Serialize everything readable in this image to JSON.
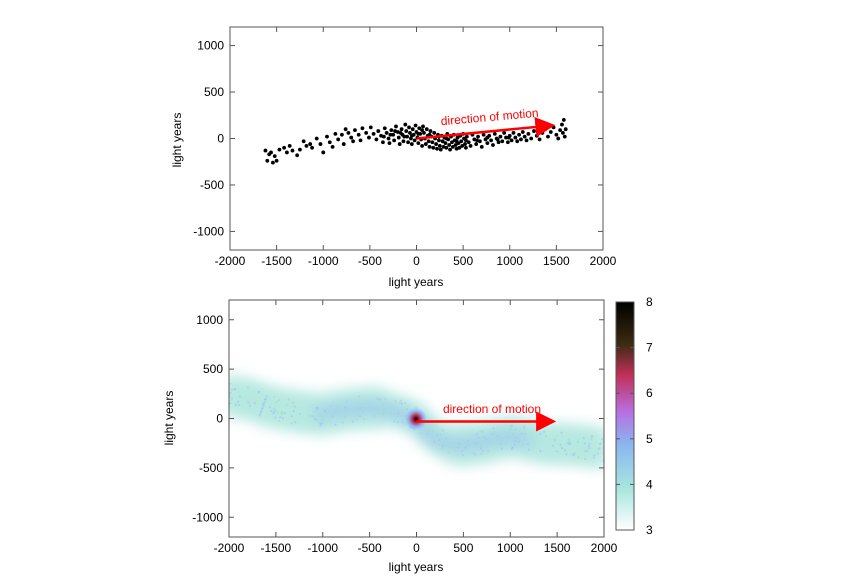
{
  "chart_data": [
    {
      "type": "scatter",
      "xlabel": "light years",
      "ylabel": "light years",
      "xlim": [
        -2000,
        2000
      ],
      "ylim": [
        -1200,
        1200
      ],
      "xticks": [
        -2000,
        -1500,
        -1000,
        -500,
        0,
        500,
        1000,
        1500,
        2000
      ],
      "yticks": [
        -1000,
        -500,
        0,
        500,
        1000
      ],
      "grid": false,
      "marker_color": "#000000",
      "points": [
        [
          -1620,
          -130
        ],
        [
          -1600,
          -240
        ],
        [
          -1580,
          -170
        ],
        [
          -1560,
          -150
        ],
        [
          -1540,
          -260
        ],
        [
          -1520,
          -190
        ],
        [
          -1500,
          -240
        ],
        [
          -1470,
          -120
        ],
        [
          -1420,
          -100
        ],
        [
          -1390,
          -150
        ],
        [
          -1360,
          -80
        ],
        [
          -1330,
          -130
        ],
        [
          -1280,
          -180
        ],
        [
          -1250,
          -120
        ],
        [
          -1210,
          -30
        ],
        [
          -1180,
          -80
        ],
        [
          -1140,
          -60
        ],
        [
          -1120,
          -100
        ],
        [
          -1070,
          0
        ],
        [
          -1030,
          -60
        ],
        [
          -1000,
          -150
        ],
        [
          -960,
          20
        ],
        [
          -930,
          -40
        ],
        [
          -900,
          -90
        ],
        [
          -870,
          50
        ],
        [
          -840,
          -10
        ],
        [
          -800,
          40
        ],
        [
          -780,
          -60
        ],
        [
          -760,
          100
        ],
        [
          -730,
          60
        ],
        [
          -700,
          10
        ],
        [
          -680,
          -30
        ],
        [
          -660,
          90
        ],
        [
          -620,
          40
        ],
        [
          -600,
          -20
        ],
        [
          -580,
          110
        ],
        [
          -540,
          60
        ],
        [
          -510,
          10
        ],
        [
          -490,
          120
        ],
        [
          -460,
          50
        ],
        [
          -430,
          -10
        ],
        [
          -410,
          80
        ],
        [
          -380,
          30
        ],
        [
          -360,
          -40
        ],
        [
          -340,
          110
        ],
        [
          -320,
          60
        ],
        [
          -300,
          0
        ],
        [
          -290,
          -50
        ],
        [
          -270,
          90
        ],
        [
          -250,
          40
        ],
        [
          -240,
          -20
        ],
        [
          -220,
          130
        ],
        [
          -200,
          70
        ],
        [
          -190,
          10
        ],
        [
          -180,
          -60
        ],
        [
          -160,
          100
        ],
        [
          -150,
          40
        ],
        [
          -140,
          -30
        ],
        [
          -120,
          150
        ],
        [
          -110,
          80
        ],
        [
          -100,
          20
        ],
        [
          -90,
          -40
        ],
        [
          -80,
          120
        ],
        [
          -70,
          60
        ],
        [
          -60,
          0
        ],
        [
          -50,
          -60
        ],
        [
          -40,
          100
        ],
        [
          -30,
          40
        ],
        [
          -20,
          -20
        ],
        [
          -10,
          140
        ],
        [
          0,
          70
        ],
        [
          10,
          10
        ],
        [
          20,
          -50
        ],
        [
          30,
          110
        ],
        [
          40,
          50
        ],
        [
          50,
          -10
        ],
        [
          60,
          -80
        ],
        [
          70,
          130
        ],
        [
          80,
          60
        ],
        [
          90,
          0
        ],
        [
          100,
          -60
        ],
        [
          110,
          100
        ],
        [
          120,
          30
        ],
        [
          130,
          -30
        ],
        [
          140,
          -90
        ],
        [
          150,
          80
        ],
        [
          160,
          20
        ],
        [
          170,
          -40
        ],
        [
          180,
          -100
        ],
        [
          190,
          60
        ],
        [
          200,
          0
        ],
        [
          210,
          -60
        ],
        [
          220,
          -110
        ],
        [
          230,
          40
        ],
        [
          240,
          -20
        ],
        [
          250,
          -80
        ],
        [
          260,
          -120
        ],
        [
          270,
          30
        ],
        [
          280,
          -30
        ],
        [
          290,
          -90
        ],
        [
          300,
          10
        ],
        [
          310,
          -50
        ],
        [
          320,
          -100
        ],
        [
          330,
          50
        ],
        [
          340,
          -10
        ],
        [
          350,
          -70
        ],
        [
          360,
          -120
        ],
        [
          370,
          20
        ],
        [
          380,
          -40
        ],
        [
          390,
          -90
        ],
        [
          400,
          40
        ],
        [
          410,
          -20
        ],
        [
          420,
          -70
        ],
        [
          430,
          -110
        ],
        [
          440,
          10
        ],
        [
          450,
          -50
        ],
        [
          460,
          -100
        ],
        [
          470,
          30
        ],
        [
          480,
          -30
        ],
        [
          490,
          -80
        ],
        [
          500,
          50
        ],
        [
          510,
          0
        ],
        [
          520,
          -60
        ],
        [
          530,
          -100
        ],
        [
          540,
          20
        ],
        [
          560,
          -40
        ],
        [
          580,
          -80
        ],
        [
          600,
          40
        ],
        [
          620,
          -10
        ],
        [
          640,
          -60
        ],
        [
          660,
          20
        ],
        [
          680,
          -30
        ],
        [
          700,
          -90
        ],
        [
          720,
          40
        ],
        [
          740,
          -10
        ],
        [
          760,
          -50
        ],
        [
          780,
          30
        ],
        [
          800,
          -20
        ],
        [
          820,
          -70
        ],
        [
          840,
          50
        ],
        [
          860,
          0
        ],
        [
          880,
          -40
        ],
        [
          900,
          20
        ],
        [
          920,
          -30
        ],
        [
          940,
          60
        ],
        [
          960,
          10
        ],
        [
          980,
          -40
        ],
        [
          1000,
          30
        ],
        [
          1020,
          -20
        ],
        [
          1040,
          60
        ],
        [
          1060,
          10
        ],
        [
          1080,
          -30
        ],
        [
          1100,
          40
        ],
        [
          1120,
          -10
        ],
        [
          1140,
          70
        ],
        [
          1160,
          20
        ],
        [
          1180,
          -20
        ],
        [
          1200,
          50
        ],
        [
          1230,
          0
        ],
        [
          1260,
          80
        ],
        [
          1290,
          30
        ],
        [
          1320,
          -10
        ],
        [
          1350,
          60
        ],
        [
          1380,
          100
        ],
        [
          1410,
          20
        ],
        [
          1440,
          70
        ],
        [
          1470,
          120
        ],
        [
          1500,
          40
        ],
        [
          1520,
          0
        ],
        [
          1540,
          90
        ],
        [
          1560,
          150
        ],
        [
          1570,
          60
        ],
        [
          1580,
          200
        ],
        [
          1590,
          20
        ],
        [
          1600,
          100
        ],
        [
          -350,
          20
        ],
        [
          -280,
          40
        ],
        [
          -230,
          80
        ],
        [
          -170,
          60
        ],
        [
          -130,
          20
        ],
        [
          -50,
          30
        ],
        [
          20,
          50
        ],
        [
          60,
          90
        ],
        [
          140,
          40
        ],
        [
          240,
          20
        ],
        [
          320,
          0
        ],
        [
          430,
          -30
        ],
        [
          530,
          -20
        ],
        [
          650,
          -20
        ],
        [
          760,
          10
        ],
        [
          870,
          -10
        ],
        [
          990,
          10
        ]
      ],
      "annotation": {
        "text": "direction of motion",
        "color": "#ff0000",
        "arrow_from": [
          0,
          0
        ],
        "arrow_to": [
          1500,
          150
        ]
      }
    },
    {
      "type": "heatmap",
      "xlabel": "light years",
      "ylabel": "light years",
      "xlim": [
        -2000,
        2000
      ],
      "ylim": [
        -1200,
        1200
      ],
      "xticks": [
        -2000,
        -1500,
        -1000,
        -500,
        0,
        500,
        1000,
        1500,
        2000
      ],
      "yticks": [
        -1000,
        -500,
        0,
        500,
        1000
      ],
      "colorbar": {
        "ticks": [
          3,
          4,
          5,
          6,
          7,
          8
        ],
        "range": [
          3,
          8
        ],
        "colors": [
          "#ffffff",
          "#a8e6de",
          "#8ab4f0",
          "#b86ee0",
          "#c0305a",
          "#3a2a10",
          "#000000"
        ]
      },
      "density_profile": [
        [
          -2000,
          230
        ],
        [
          -1800,
          200
        ],
        [
          -1600,
          130
        ],
        [
          -1400,
          90
        ],
        [
          -1200,
          60
        ],
        [
          -1000,
          40
        ],
        [
          -800,
          80
        ],
        [
          -600,
          100
        ],
        [
          -400,
          110
        ],
        [
          -200,
          70
        ],
        [
          0,
          0
        ],
        [
          200,
          -200
        ],
        [
          400,
          -270
        ],
        [
          600,
          -260
        ],
        [
          800,
          -230
        ],
        [
          1000,
          -180
        ],
        [
          1200,
          -220
        ],
        [
          1400,
          -260
        ],
        [
          1600,
          -260
        ],
        [
          1800,
          -280
        ],
        [
          2000,
          -300
        ]
      ],
      "annotation": {
        "text": "direction of motion",
        "color": "#ff0000",
        "arrow_from": [
          0,
          -30
        ],
        "arrow_to": [
          1500,
          -30
        ]
      }
    }
  ]
}
